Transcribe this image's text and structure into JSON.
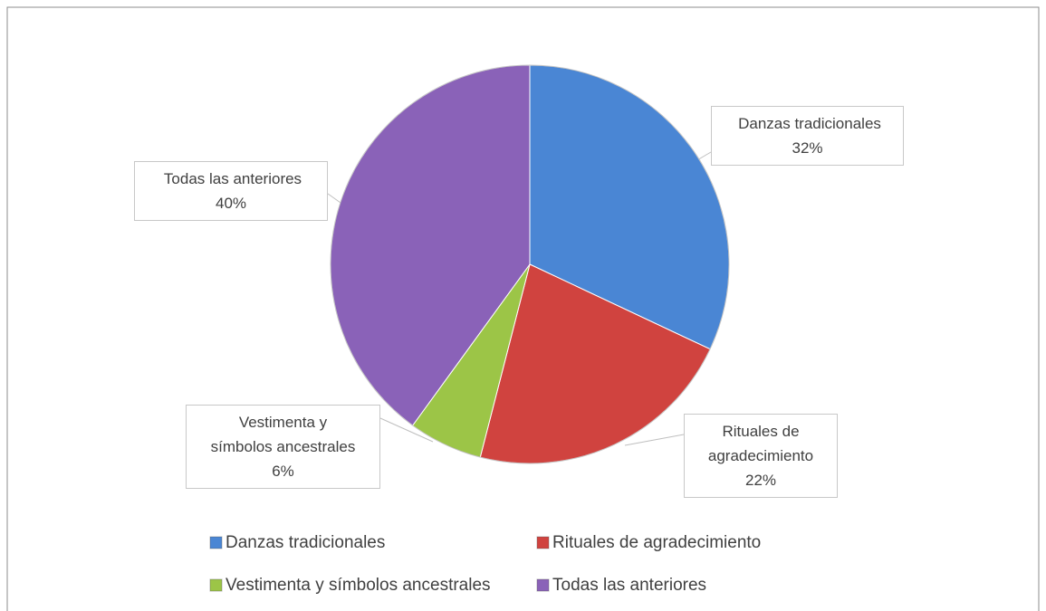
{
  "chart_data": {
    "type": "pie",
    "categories": [
      "Danzas tradicionales",
      "Rituales de agradecimiento",
      "Vestimenta y símbolos ancestrales",
      "Todas las anteriores"
    ],
    "values": [
      32,
      22,
      6,
      40
    ],
    "value_labels": [
      "32%",
      "22%",
      "6%",
      "40%"
    ],
    "colors": [
      "#4a86d4",
      "#d0433f",
      "#9cc547",
      "#8a62b8"
    ],
    "legend": "bottom"
  }
}
